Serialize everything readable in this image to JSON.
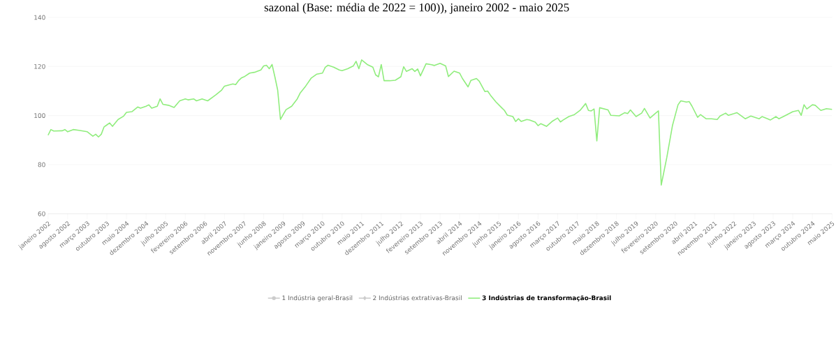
{
  "chart_data": {
    "type": "line",
    "title": "sazonal (Base: média de 2022 = 100)), janeiro 2002 - maio 2025",
    "xlim": [
      "2002-01",
      "2025-05"
    ],
    "ylim": [
      60,
      140
    ],
    "yticks": [
      60,
      80,
      100,
      120,
      140
    ],
    "grid": "y",
    "legend": "bottom",
    "marker": "none",
    "line_style": "solid",
    "xticks": [
      {
        "value": "2002-01",
        "label": "janeiro 2002"
      },
      {
        "value": "2002-08",
        "label": "agosto 2002"
      },
      {
        "value": "2003-03",
        "label": "março 2003"
      },
      {
        "value": "2003-10",
        "label": "outubro 2003"
      },
      {
        "value": "2004-05",
        "label": "maio 2004"
      },
      {
        "value": "2004-12",
        "label": "dezembro 2004"
      },
      {
        "value": "2005-07",
        "label": "julho 2005"
      },
      {
        "value": "2006-02",
        "label": "fevereiro 2006"
      },
      {
        "value": "2006-09",
        "label": "setembro 2006"
      },
      {
        "value": "2007-04",
        "label": "abril 2007"
      },
      {
        "value": "2007-11",
        "label": "novembro 2007"
      },
      {
        "value": "2008-06",
        "label": "junho 2008"
      },
      {
        "value": "2009-01",
        "label": "janeiro 2009"
      },
      {
        "value": "2009-08",
        "label": "agosto 2009"
      },
      {
        "value": "2010-03",
        "label": "março 2010"
      },
      {
        "value": "2010-10",
        "label": "outubro 2010"
      },
      {
        "value": "2011-05",
        "label": "maio 2011"
      },
      {
        "value": "2011-12",
        "label": "dezembro 2011"
      },
      {
        "value": "2012-07",
        "label": "julho 2012"
      },
      {
        "value": "2013-02",
        "label": "fevereiro 2013"
      },
      {
        "value": "2013-09",
        "label": "setembro 2013"
      },
      {
        "value": "2014-04",
        "label": "abril 2014"
      },
      {
        "value": "2014-11",
        "label": "novembro 2014"
      },
      {
        "value": "2015-06",
        "label": "junho 2015"
      },
      {
        "value": "2016-01",
        "label": "janeiro 2016"
      },
      {
        "value": "2016-08",
        "label": "agosto 2016"
      },
      {
        "value": "2017-03",
        "label": "março 2017"
      },
      {
        "value": "2017-10",
        "label": "outubro 2017"
      },
      {
        "value": "2018-05",
        "label": "maio 2018"
      },
      {
        "value": "2018-12",
        "label": "dezembro 2018"
      },
      {
        "value": "2019-07",
        "label": "julho 2019"
      },
      {
        "value": "2020-02",
        "label": "fevereiro 2020"
      },
      {
        "value": "2020-09",
        "label": "setembro 2020"
      },
      {
        "value": "2021-04",
        "label": "abril 2021"
      },
      {
        "value": "2021-11",
        "label": "novembro 2021"
      },
      {
        "value": "2022-06",
        "label": "junho 2022"
      },
      {
        "value": "2023-01",
        "label": "janeiro 2023"
      },
      {
        "value": "2023-08",
        "label": "agosto 2023"
      },
      {
        "value": "2024-03",
        "label": "março 2024"
      },
      {
        "value": "2024-10",
        "label": "outubro 2024"
      },
      {
        "value": "2025-05",
        "label": "maio 2025"
      }
    ],
    "series": [
      {
        "name": "1 Indústria geral-Brasil",
        "color": "#cccccc"
      },
      {
        "name": "2 Indústrias extrativas-Brasil",
        "color": "#cccccc"
      },
      {
        "name": "3 Indústrias de transformação-Brasil",
        "color": "#90ed7d",
        "x": [
          "2002-01",
          "2002-02",
          "2002-03",
          "2002-06",
          "2002-07",
          "2002-08",
          "2002-10",
          "2002-12",
          "2003-03",
          "2003-05",
          "2003-06",
          "2003-07",
          "2003-08",
          "2003-09",
          "2003-10",
          "2003-11",
          "2003-12",
          "2004-02",
          "2004-04",
          "2004-05",
          "2004-07",
          "2004-09",
          "2004-10",
          "2004-12",
          "2005-01",
          "2005-02",
          "2005-04",
          "2005-05",
          "2005-06",
          "2005-08",
          "2005-10",
          "2005-12",
          "2006-02",
          "2006-03",
          "2006-05",
          "2006-06",
          "2006-08",
          "2006-10",
          "2006-12",
          "2007-01",
          "2007-03",
          "2007-04",
          "2007-07",
          "2007-08",
          "2007-09",
          "2007-10",
          "2007-11",
          "2008-01",
          "2008-03",
          "2008-05",
          "2008-06",
          "2008-07",
          "2008-08",
          "2008-09",
          "2008-10",
          "2008-11",
          "2008-12",
          "2009-01",
          "2009-02",
          "2009-04",
          "2009-06",
          "2009-07",
          "2009-09",
          "2009-11",
          "2010-01",
          "2010-03",
          "2010-04",
          "2010-05",
          "2010-07",
          "2010-09",
          "2010-10",
          "2010-12",
          "2011-02",
          "2011-03",
          "2011-04",
          "2011-05",
          "2011-07",
          "2011-09",
          "2011-10",
          "2011-11",
          "2011-12",
          "2012-01",
          "2012-03",
          "2012-05",
          "2012-07",
          "2012-08",
          "2012-09",
          "2012-11",
          "2012-12",
          "2013-01",
          "2013-02",
          "2013-04",
          "2013-06",
          "2013-07",
          "2013-09",
          "2013-11",
          "2013-12",
          "2014-02",
          "2014-04",
          "2014-05",
          "2014-07",
          "2014-08",
          "2014-10",
          "2014-11",
          "2015-01",
          "2015-02",
          "2015-03",
          "2015-05",
          "2015-07",
          "2015-08",
          "2015-09",
          "2015-11",
          "2015-12",
          "2016-01",
          "2016-02",
          "2016-04",
          "2016-05",
          "2016-07",
          "2016-08",
          "2016-09",
          "2016-11",
          "2017-01",
          "2017-03",
          "2017-04",
          "2017-05",
          "2017-07",
          "2017-09",
          "2017-11",
          "2018-01",
          "2018-02",
          "2018-03",
          "2018-04",
          "2018-05",
          "2018-06",
          "2018-09",
          "2018-10",
          "2019-01",
          "2019-03",
          "2019-04",
          "2019-05",
          "2019-07",
          "2019-09",
          "2019-10",
          "2019-12",
          "2020-02",
          "2020-03",
          "2020-04",
          "2020-06",
          "2020-08",
          "2020-10",
          "2020-11",
          "2021-01",
          "2021-02",
          "2021-03",
          "2021-05",
          "2021-06",
          "2021-08",
          "2021-10",
          "2021-12",
          "2022-01",
          "2022-03",
          "2022-04",
          "2022-06",
          "2022-07",
          "2022-10",
          "2022-12",
          "2023-03",
          "2023-04",
          "2023-06",
          "2023-07",
          "2023-09",
          "2023-10",
          "2023-12",
          "2024-03",
          "2024-05",
          "2024-06",
          "2024-07",
          "2024-08",
          "2024-10",
          "2024-11",
          "2025-01",
          "2025-03",
          "2025-05"
        ],
        "values": [
          92.0,
          94.3,
          93.7,
          93.8,
          94.3,
          93.4,
          94.3,
          94.0,
          93.4,
          91.6,
          92.4,
          91.3,
          92.4,
          95.4,
          96.2,
          97.0,
          95.6,
          98.4,
          99.8,
          101.3,
          101.6,
          103.5,
          103.0,
          103.8,
          104.4,
          103.0,
          103.8,
          106.8,
          104.6,
          104.2,
          103.3,
          106.0,
          106.8,
          106.4,
          106.8,
          106.0,
          106.8,
          106.0,
          107.7,
          108.5,
          110.4,
          112.0,
          112.9,
          112.6,
          114.2,
          115.3,
          115.8,
          117.3,
          117.7,
          118.6,
          120.2,
          120.5,
          119.1,
          120.8,
          115.8,
          110.4,
          98.4,
          100.5,
          102.4,
          103.8,
          106.8,
          109.1,
          112.0,
          115.3,
          116.9,
          117.3,
          119.7,
          120.5,
          119.7,
          118.6,
          118.3,
          119.1,
          120.2,
          122.1,
          119.1,
          122.7,
          120.8,
          119.7,
          116.6,
          115.8,
          120.8,
          114.2,
          114.2,
          114.4,
          115.8,
          119.9,
          118.0,
          119.1,
          118.0,
          119.0,
          116.2,
          121.1,
          120.7,
          120.4,
          121.3,
          120.2,
          115.9,
          118.1,
          117.3,
          115.1,
          111.7,
          114.3,
          115.1,
          114.0,
          109.8,
          110.0,
          108.3,
          105.5,
          103.2,
          102.1,
          100.2,
          99.6,
          97.6,
          98.7,
          97.6,
          98.4,
          98.2,
          97.3,
          95.9,
          96.7,
          95.6,
          97.6,
          99.0,
          97.4,
          98.2,
          99.6,
          100.4,
          102.1,
          104.9,
          102.1,
          101.9,
          102.7,
          89.7,
          103.2,
          102.3,
          100.1,
          99.9,
          101.2,
          100.8,
          102.3,
          99.6,
          101.0,
          102.9,
          99.0,
          101.0,
          101.9,
          71.7,
          83.0,
          95.9,
          104.4,
          106.0,
          105.5,
          105.7,
          103.8,
          99.3,
          100.4,
          98.7,
          98.7,
          98.4,
          99.8,
          101.0,
          100.1,
          100.8,
          101.2,
          98.7,
          99.8,
          98.7,
          99.6,
          98.7,
          98.2,
          99.6,
          98.7,
          99.8,
          101.6,
          102.1,
          100.1,
          104.4,
          102.7,
          104.4,
          104.2,
          102.1,
          102.8,
          102.5
        ]
      }
    ]
  }
}
